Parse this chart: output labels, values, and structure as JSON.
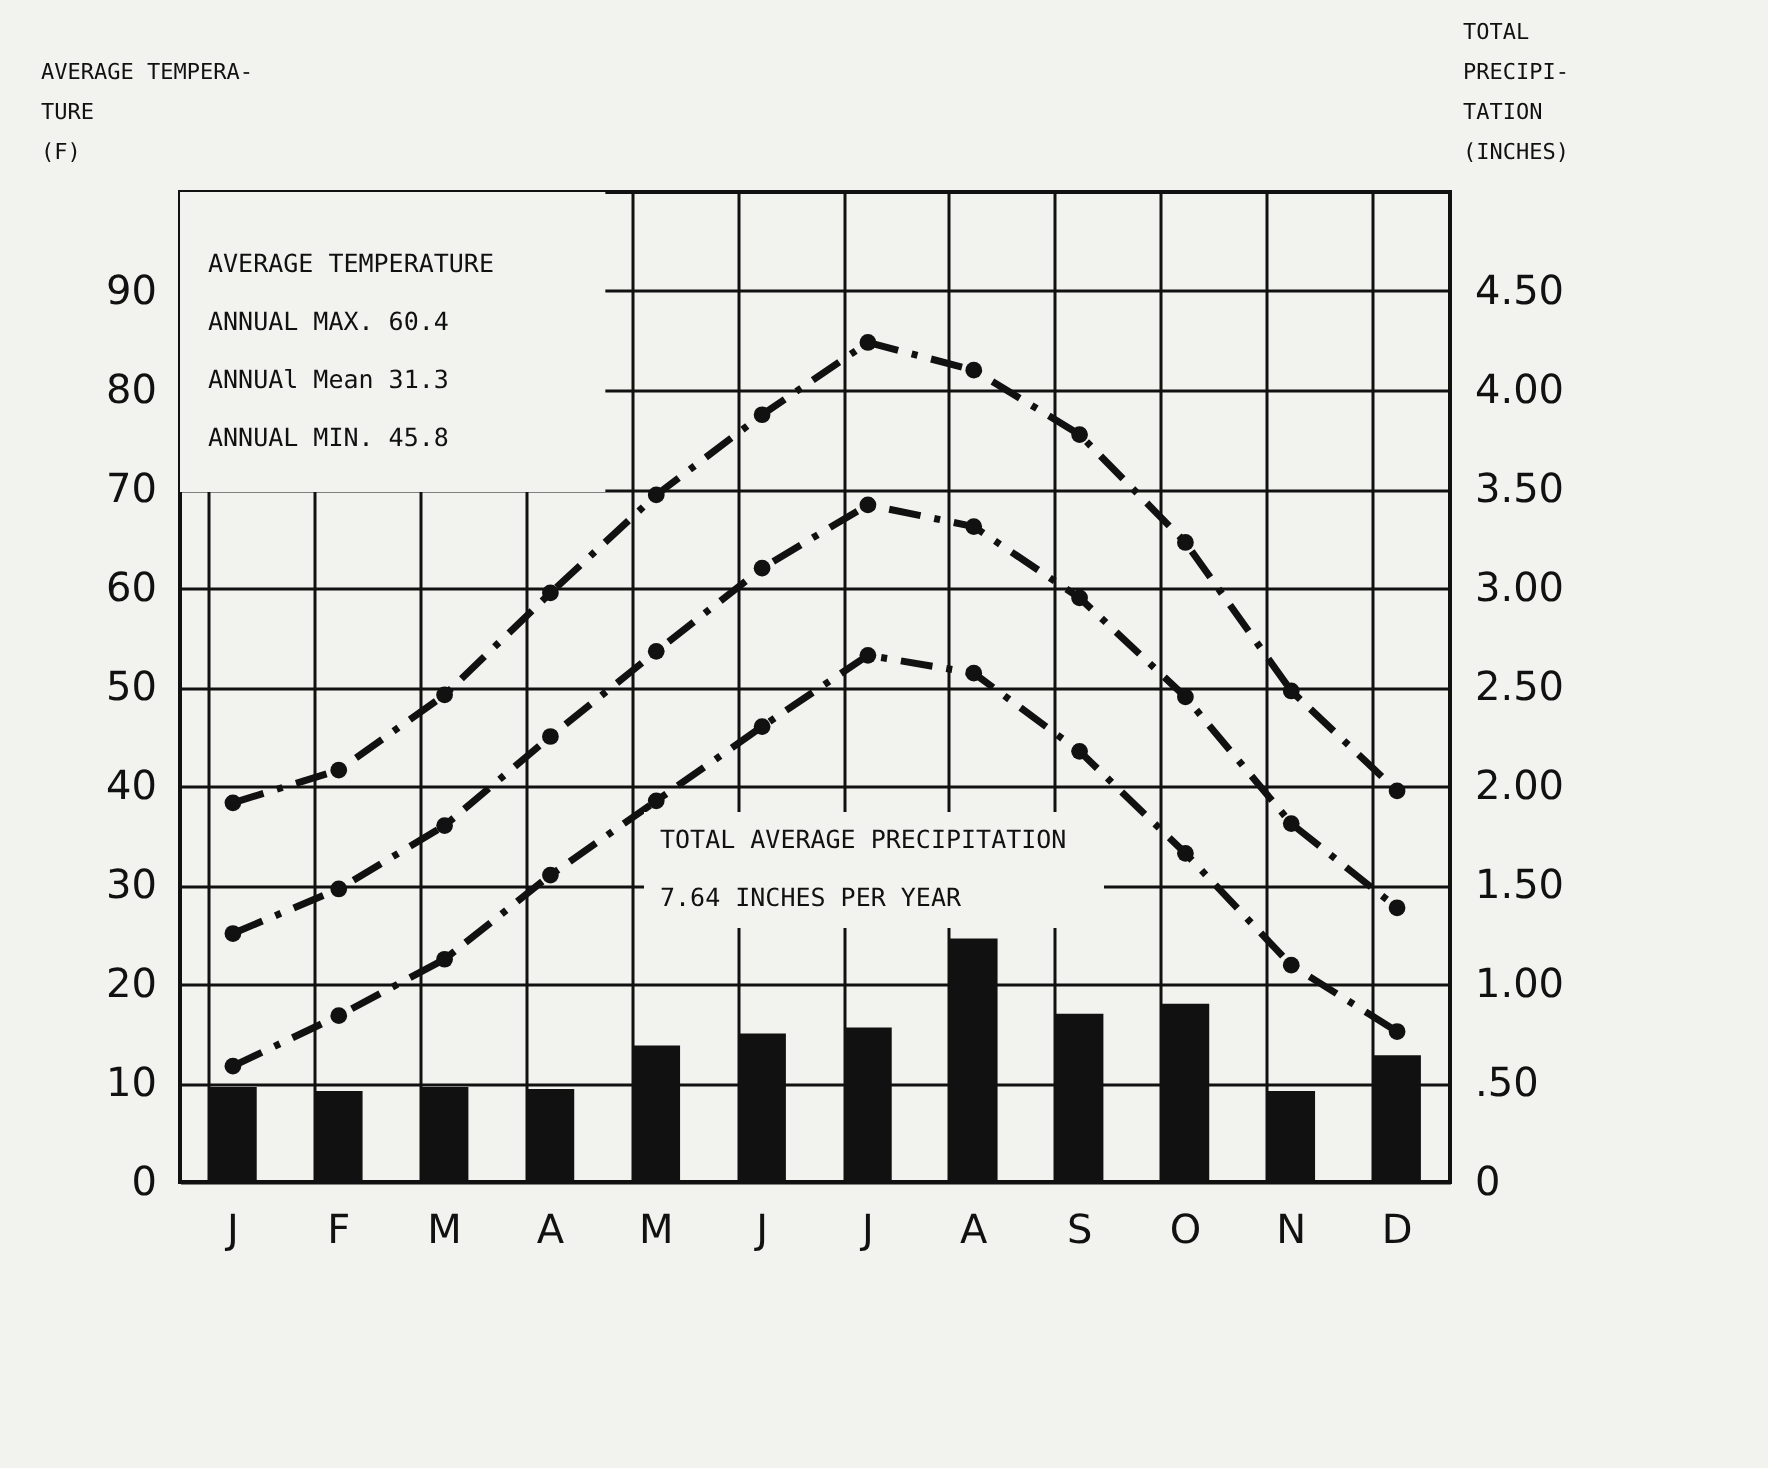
{
  "chart_data": {
    "type": "line",
    "ylabel": "AVERAGE TEMPERA-\nTURE\n(F)",
    "y2label": "TOTAL\nPRECIPI-\nTATION\n(INCHES)",
    "categories": [
      "J",
      "F",
      "M",
      "A",
      "M",
      "J",
      "J",
      "A",
      "S",
      "O",
      "N",
      "D"
    ],
    "series": [
      {
        "color": "#111111",
        "values": [
          38.3,
          41.6,
          49.2,
          59.5,
          69.4,
          77.5,
          84.8,
          82.0,
          75.5,
          64.6,
          49.6,
          39.5
        ]
      },
      {
        "color": "#111111",
        "values": [
          25.1,
          29.6,
          36.0,
          45.0,
          53.6,
          62.0,
          68.4,
          66.2,
          59.0,
          49.0,
          36.2,
          27.7
        ]
      },
      {
        "color": "#111111",
        "values": [
          11.7,
          16.8,
          22.5,
          31.0,
          38.5,
          46.0,
          53.2,
          51.4,
          43.5,
          33.2,
          21.9,
          15.2
        ]
      },
      {
        "type": "bar",
        "axis": "y2",
        "color": "#111111",
        "values": [
          0.48,
          0.46,
          0.48,
          0.47,
          0.69,
          0.75,
          0.78,
          1.23,
          0.85,
          0.9,
          0.46,
          0.64
        ]
      }
    ],
    "ylim": [
      0,
      100
    ],
    "yticks": [
      0,
      10,
      20,
      30,
      40,
      50,
      60,
      70,
      80,
      90
    ],
    "y2lim": [
      0,
      5
    ],
    "y2ticks": [
      0,
      {
        "value": 0.5,
        "label": ".50"
      },
      {
        "value": 1,
        "label": "1.00"
      },
      {
        "value": 1.5,
        "label": "1.50"
      },
      {
        "value": 2,
        "label": "2.00"
      },
      {
        "value": 2.5,
        "label": "2.50"
      },
      {
        "value": 3,
        "label": "3.00"
      },
      {
        "value": 3.5,
        "label": "3.50"
      },
      {
        "value": 4,
        "label": "4.00"
      },
      {
        "value": 4.5,
        "label": "4.50"
      }
    ],
    "annotations": [
      "AVERAGE TEMPERATURE\nANNUAL MAX. 60.4\nANNUAl Mean 31.3\nANNUAL MIN. 45.8",
      "TOTAL AVERAGE PRECIPITATION\n7.64 INCHES PER YEAR"
    ],
    "grid": true,
    "marker": "circle",
    "line_style": "dashed"
  }
}
